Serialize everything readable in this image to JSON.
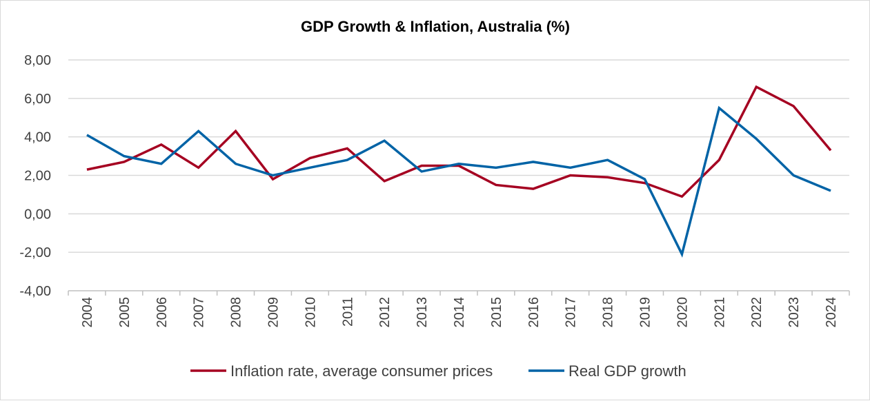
{
  "chart_data": {
    "type": "line",
    "title": "GDP Growth & Inflation, Australia (%)",
    "xlabel": "",
    "ylabel": "",
    "ylim": [
      -4,
      8
    ],
    "yticks": [
      -4,
      -2,
      0,
      2,
      4,
      6,
      8
    ],
    "ytick_labels": [
      "-4,00",
      "-2,00",
      "0,00",
      "2,00",
      "4,00",
      "6,00",
      "8,00"
    ],
    "grid": true,
    "legend_placement": "bottom",
    "categories": [
      "2004",
      "2005",
      "2006",
      "2007",
      "2008",
      "2009",
      "2010",
      "2011",
      "2012",
      "2013",
      "2014",
      "2015",
      "2016",
      "2017",
      "2018",
      "2019",
      "2020",
      "2021",
      "2022",
      "2023",
      "2024"
    ],
    "series": [
      {
        "name": "Inflation rate, average consumer prices",
        "color": "#a50021",
        "values": [
          2.3,
          2.7,
          3.6,
          2.4,
          4.3,
          1.8,
          2.9,
          3.4,
          1.7,
          2.5,
          2.5,
          1.5,
          1.3,
          2.0,
          1.9,
          1.6,
          0.9,
          2.8,
          6.6,
          5.6,
          3.3
        ]
      },
      {
        "name": "Real GDP growth",
        "color": "#0063a6",
        "values": [
          4.1,
          3.0,
          2.6,
          4.3,
          2.6,
          2.0,
          2.4,
          2.8,
          3.8,
          2.2,
          2.6,
          2.4,
          2.7,
          2.4,
          2.8,
          1.8,
          -2.1,
          5.5,
          3.9,
          2.0,
          1.2
        ]
      }
    ]
  }
}
